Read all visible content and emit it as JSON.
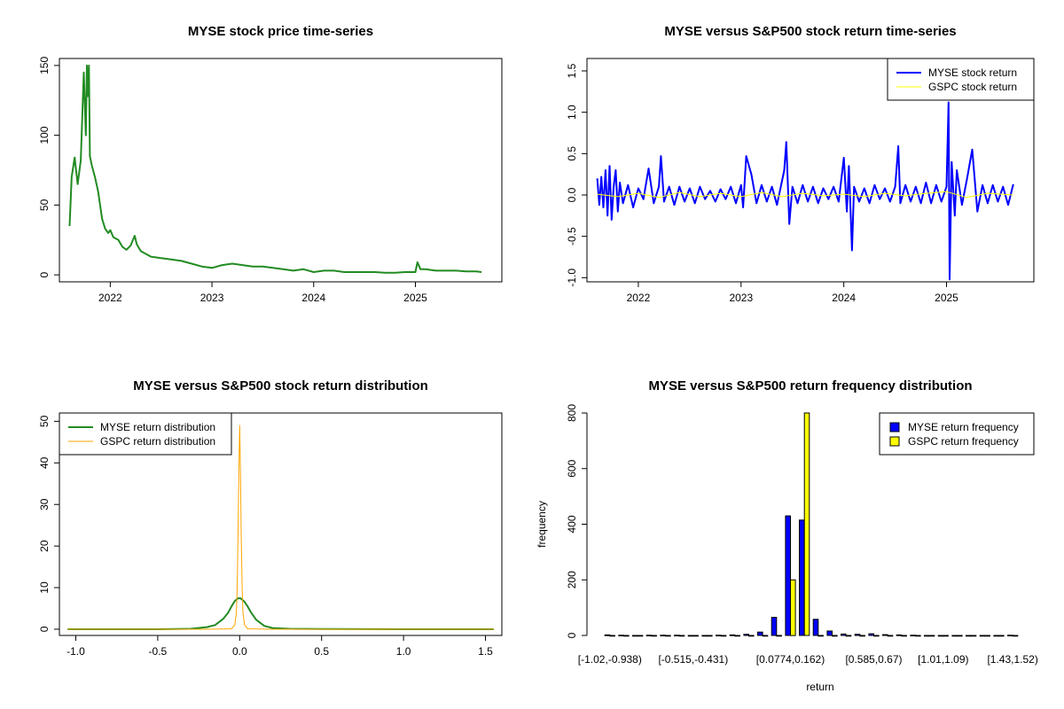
{
  "chart_data": [
    {
      "type": "line",
      "title": "MYSE stock price time-series",
      "xlabel": "",
      "ylabel": "",
      "xlim": [
        2021.5,
        2025.85
      ],
      "ylim": [
        -5,
        155
      ],
      "x_ticks": [
        2022,
        2023,
        2024,
        2025
      ],
      "x_tick_labels": [
        "2022",
        "2023",
        "2024",
        "2025"
      ],
      "y_ticks": [
        0,
        50,
        100,
        150
      ],
      "y_tick_labels": [
        "0",
        "50",
        "100",
        "150"
      ],
      "grid": false,
      "legend": null,
      "series": [
        {
          "color": "#228B22",
          "x": [
            2021.6,
            2021.62,
            2021.65,
            2021.68,
            2021.71,
            2021.74,
            2021.76,
            2021.77,
            2021.78,
            2021.79,
            2021.8,
            2021.82,
            2021.85,
            2021.88,
            2021.9,
            2021.92,
            2021.95,
            2021.98,
            2022.0,
            2022.03,
            2022.08,
            2022.12,
            2022.16,
            2022.2,
            2022.24,
            2022.26,
            2022.3,
            2022.35,
            2022.4,
            2022.5,
            2022.6,
            2022.7,
            2022.8,
            2022.9,
            2023.0,
            2023.1,
            2023.2,
            2023.3,
            2023.4,
            2023.5,
            2023.6,
            2023.7,
            2023.8,
            2023.9,
            2024.0,
            2024.1,
            2024.2,
            2024.3,
            2024.4,
            2024.5,
            2024.6,
            2024.7,
            2024.8,
            2024.9,
            2025.0,
            2025.02,
            2025.05,
            2025.1,
            2025.2,
            2025.3,
            2025.4,
            2025.5,
            2025.6,
            2025.65
          ],
          "y": [
            35,
            70,
            84,
            65,
            82,
            145,
            100,
            150,
            128,
            150,
            85,
            78,
            70,
            60,
            50,
            40,
            33,
            30,
            32,
            27,
            25,
            20,
            18,
            21,
            28,
            22,
            17,
            15,
            13,
            12,
            11,
            10,
            8,
            6,
            5,
            7,
            8,
            7,
            6,
            6,
            5,
            4,
            3,
            4,
            2,
            3,
            3,
            2,
            2,
            2,
            2,
            1.5,
            1.5,
            2,
            2,
            9,
            4,
            4,
            3,
            3,
            3,
            2.5,
            2.5,
            2
          ]
        }
      ]
    },
    {
      "type": "line",
      "title": "MYSE versus S&P500 stock return time-series",
      "xlabel": "",
      "ylabel": "",
      "xlim": [
        2021.5,
        2025.85
      ],
      "ylim": [
        -1.05,
        1.65
      ],
      "x_ticks": [
        2022,
        2023,
        2024,
        2025
      ],
      "x_tick_labels": [
        "2022",
        "2023",
        "2024",
        "2025"
      ],
      "y_ticks": [
        -1.0,
        -0.5,
        0.0,
        0.5,
        1.0,
        1.5
      ],
      "y_tick_labels": [
        "-1.0",
        "-0.5",
        "0.0",
        "0.5",
        "1.0",
        "1.5"
      ],
      "grid": false,
      "legend_position": "top-right",
      "series": [
        {
          "name": "MYSE stock return",
          "color": "#0000ff",
          "x": [
            2021.6,
            2021.62,
            2021.64,
            2021.66,
            2021.68,
            2021.7,
            2021.72,
            2021.74,
            2021.76,
            2021.78,
            2021.8,
            2021.82,
            2021.85,
            2021.9,
            2021.95,
            2022.0,
            2022.05,
            2022.1,
            2022.15,
            2022.2,
            2022.22,
            2022.25,
            2022.3,
            2022.35,
            2022.4,
            2022.45,
            2022.5,
            2022.55,
            2022.6,
            2022.65,
            2022.7,
            2022.75,
            2022.8,
            2022.85,
            2022.9,
            2022.95,
            2023.0,
            2023.02,
            2023.05,
            2023.1,
            2023.15,
            2023.2,
            2023.25,
            2023.3,
            2023.35,
            2023.42,
            2023.44,
            2023.47,
            2023.5,
            2023.55,
            2023.6,
            2023.65,
            2023.7,
            2023.75,
            2023.8,
            2023.85,
            2023.9,
            2023.95,
            2024.0,
            2024.03,
            2024.05,
            2024.08,
            2024.1,
            2024.15,
            2024.2,
            2024.25,
            2024.3,
            2024.35,
            2024.4,
            2024.45,
            2024.5,
            2024.53,
            2024.55,
            2024.6,
            2024.65,
            2024.7,
            2024.75,
            2024.8,
            2024.85,
            2024.9,
            2024.95,
            2025.0,
            2025.02,
            2025.03,
            2025.05,
            2025.08,
            2025.1,
            2025.15,
            2025.2,
            2025.25,
            2025.3,
            2025.35,
            2025.4,
            2025.45,
            2025.5,
            2025.55,
            2025.6,
            2025.65
          ],
          "y": [
            0.2,
            -0.12,
            0.22,
            -0.15,
            0.3,
            -0.25,
            0.35,
            -0.3,
            0.1,
            0.3,
            -0.2,
            0.15,
            -0.1,
            0.12,
            -0.15,
            0.08,
            -0.05,
            0.32,
            -0.1,
            0.1,
            0.47,
            -0.08,
            0.1,
            -0.12,
            0.1,
            -0.08,
            0.08,
            -0.1,
            0.1,
            -0.05,
            0.05,
            -0.08,
            0.07,
            -0.05,
            0.1,
            -0.1,
            0.12,
            -0.15,
            0.47,
            0.25,
            -0.1,
            0.12,
            -0.08,
            0.1,
            -0.12,
            0.3,
            0.64,
            -0.35,
            0.1,
            -0.1,
            0.12,
            -0.08,
            0.1,
            -0.1,
            0.08,
            -0.05,
            0.1,
            -0.08,
            0.45,
            -0.2,
            0.35,
            -0.67,
            0.1,
            -0.08,
            0.08,
            -0.1,
            0.12,
            -0.05,
            0.08,
            -0.08,
            0.1,
            0.59,
            -0.1,
            0.12,
            -0.08,
            0.1,
            -0.1,
            0.15,
            -0.1,
            0.12,
            -0.08,
            0.1,
            1.12,
            -1.02,
            0.4,
            -0.25,
            0.3,
            -0.12,
            0.2,
            0.55,
            -0.2,
            0.12,
            -0.1,
            0.12,
            -0.08,
            0.1,
            -0.12,
            0.13
          ]
        },
        {
          "name": "GSPC stock return",
          "color": "#ffff00",
          "x": [
            2021.6,
            2021.8,
            2022.0,
            2022.2,
            2022.4,
            2022.6,
            2022.8,
            2023.0,
            2023.2,
            2023.4,
            2023.6,
            2023.8,
            2024.0,
            2024.2,
            2024.4,
            2024.6,
            2024.8,
            2025.0,
            2025.2,
            2025.4,
            2025.65
          ],
          "y": [
            0.01,
            -0.02,
            0.02,
            -0.03,
            0.03,
            -0.02,
            0.02,
            -0.02,
            0.03,
            -0.02,
            0.02,
            -0.01,
            0.01,
            -0.02,
            0.02,
            -0.01,
            0.02,
            0.04,
            -0.03,
            0.02,
            0.0
          ]
        }
      ]
    },
    {
      "type": "line",
      "title": "MYSE versus S&P500 stock return distribution",
      "xlabel": "",
      "ylabel": "",
      "xlim": [
        -1.1,
        1.6
      ],
      "ylim": [
        -1.5,
        52
      ],
      "x_ticks": [
        -1.0,
        -0.5,
        0.0,
        0.5,
        1.0,
        1.5
      ],
      "x_tick_labels": [
        "-1.0",
        "-0.5",
        "0.0",
        "0.5",
        "1.0",
        "1.5"
      ],
      "y_ticks": [
        0,
        10,
        20,
        30,
        40,
        50
      ],
      "y_tick_labels": [
        "0",
        "10",
        "20",
        "30",
        "40",
        "50"
      ],
      "grid": false,
      "legend_position": "top-left",
      "series": [
        {
          "name": "MYSE return distribution",
          "color": "#228B22",
          "x": [
            -1.05,
            -0.5,
            -0.3,
            -0.2,
            -0.15,
            -0.1,
            -0.07,
            -0.05,
            -0.03,
            -0.01,
            0.0,
            0.01,
            0.03,
            0.05,
            0.07,
            0.1,
            0.15,
            0.2,
            0.3,
            0.5,
            1.0,
            1.55
          ],
          "y": [
            0,
            0,
            0.1,
            0.5,
            1.0,
            2.5,
            4.0,
            5.5,
            6.8,
            7.4,
            7.5,
            7.3,
            6.6,
            5.4,
            4.0,
            2.3,
            0.8,
            0.3,
            0.1,
            0.05,
            0,
            0
          ]
        },
        {
          "name": "GSPC return distribution",
          "color": "#FFA500",
          "x": [
            -1.05,
            -0.2,
            -0.05,
            -0.03,
            -0.02,
            -0.015,
            -0.01,
            -0.005,
            0.0,
            0.005,
            0.01,
            0.015,
            0.02,
            0.03,
            0.05,
            0.2,
            1.55
          ],
          "y": [
            0,
            0,
            0.1,
            1.0,
            4.0,
            10.0,
            22.0,
            38.0,
            49.0,
            38.0,
            22.0,
            10.0,
            4.0,
            1.0,
            0.1,
            0,
            0
          ]
        }
      ]
    },
    {
      "type": "bar",
      "title": "MYSE versus S&P500 return frequency distribution",
      "xlabel": "return",
      "ylabel": "frequency",
      "ylim": [
        0,
        800
      ],
      "y_ticks": [
        0,
        200,
        400,
        600,
        800
      ],
      "y_tick_labels": [
        "0",
        "200",
        "400",
        "600",
        "800"
      ],
      "x_tick_labels": [
        "[-1.02,-0.938)",
        "[-0.515,-0.431)",
        "[0.0774,0.162)",
        "[0.585,0.67)",
        "[1.01,1.09)",
        "[1.43,1.52)"
      ],
      "x_tick_label_bins": [
        0,
        6,
        13,
        19,
        24,
        29
      ],
      "bin_count": 30,
      "grid": false,
      "legend_position": "top-right",
      "series": [
        {
          "name": "MYSE return frequency",
          "color": "#0000ff",
          "values": [
            2,
            1,
            0,
            1,
            1,
            1,
            0,
            0,
            1,
            2,
            4,
            12,
            65,
            430,
            415,
            58,
            16,
            5,
            4,
            6,
            3,
            2,
            1,
            0,
            0,
            0,
            0,
            0,
            0,
            1
          ]
        },
        {
          "name": "GSPC return frequency",
          "color": "#ffff00",
          "values": [
            0,
            0,
            0,
            0,
            0,
            0,
            0,
            0,
            0,
            0,
            0,
            0,
            0,
            200,
            810,
            0,
            0,
            0,
            0,
            0,
            0,
            0,
            0,
            0,
            0,
            0,
            0,
            0,
            0,
            0
          ]
        }
      ]
    }
  ]
}
